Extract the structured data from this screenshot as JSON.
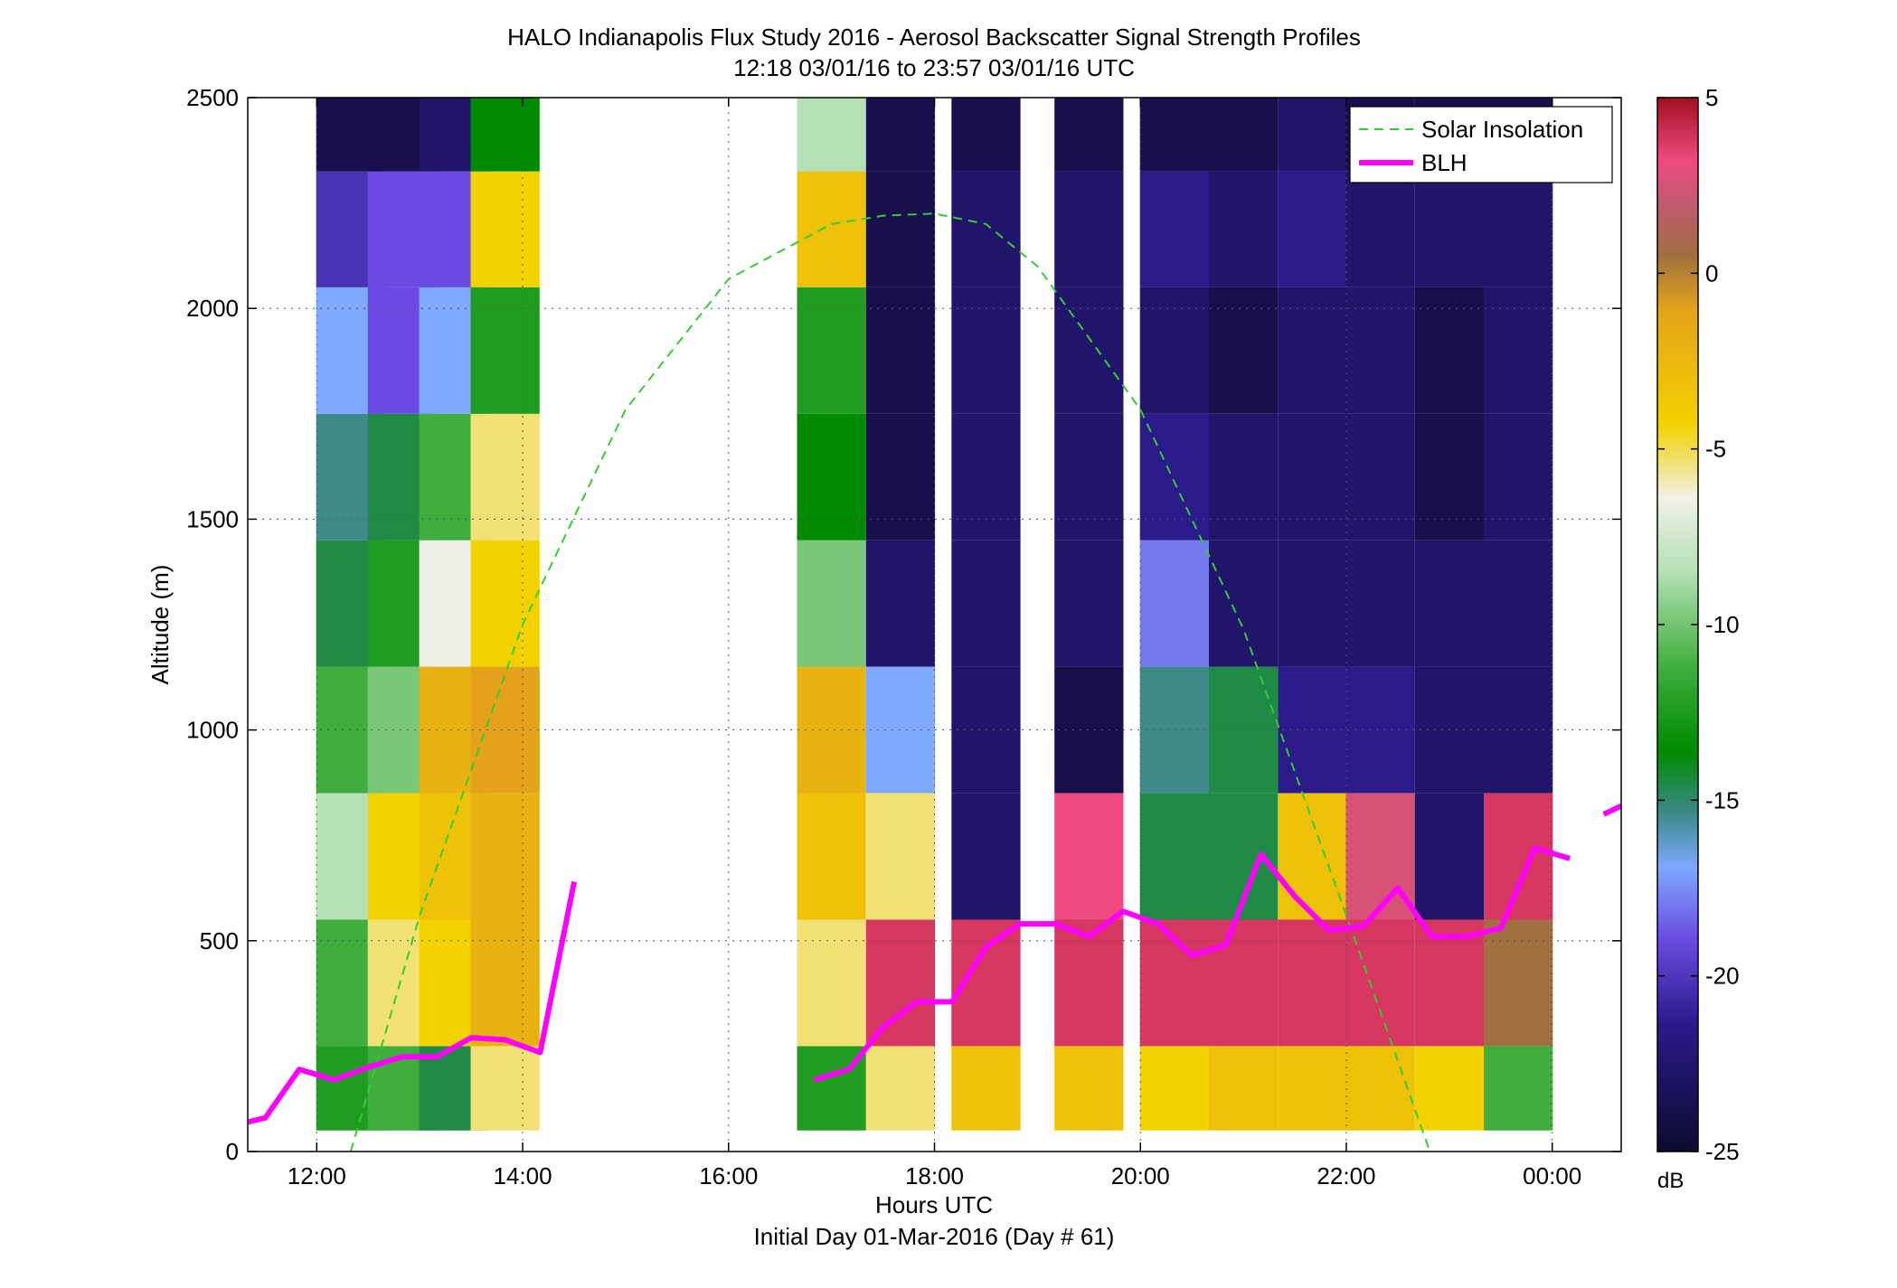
{
  "chart_data": {
    "type": "heatmap",
    "title": "HALO Indianapolis Flux Study 2016 - Aerosol Backscatter Signal Strength Profiles",
    "subtitle": "12:18 03/01/16 to 23:57 03/01/16  UTC",
    "xlabel": "Hours UTC",
    "xlabel_secondary": "Initial Day 01-Mar-2016 (Day # 61)",
    "ylabel": "Altitude (m)",
    "x_unit": "hours UTC (hours after 00:00 on 01-Mar-2016)",
    "xlim": [
      11.33,
      24.67
    ],
    "ylim": [
      0,
      2500
    ],
    "x_ticks": [
      12,
      14,
      16,
      18,
      20,
      22,
      24
    ],
    "x_tick_labels": [
      "12:00",
      "14:00",
      "16:00",
      "18:00",
      "20:00",
      "22:00",
      "00:00"
    ],
    "y_ticks": [
      0,
      500,
      1000,
      1500,
      2000,
      2500
    ],
    "y_tick_labels": [
      "0",
      "500",
      "1000",
      "1500",
      "2000",
      "2500"
    ],
    "grid": true,
    "colorbar": {
      "label": "dB",
      "range": [
        -25,
        5
      ],
      "ticks": [
        5,
        0,
        -5,
        -10,
        -15,
        -20,
        -25
      ],
      "tick_labels": [
        "5",
        "0",
        "-5",
        "-10",
        "-15",
        "-20",
        "-25"
      ]
    },
    "heatmap": {
      "value_unit": "dB",
      "altitude_bin_centers_m": [
        100,
        400,
        700,
        1000,
        1300,
        1600,
        1900,
        2200,
        2450
      ],
      "profiles": [
        {
          "time": 12.33,
          "values": [
            -14,
            -13,
            -11,
            -13,
            -16,
            -17,
            -18,
            -21,
            -24
          ]
        },
        {
          "time": 12.83,
          "values": [
            -13,
            -8,
            -7,
            -12,
            -14,
            -16,
            -20,
            -20,
            -24
          ]
        },
        {
          "time": 13.33,
          "values": [
            -16,
            -7,
            -6,
            -5,
            -9,
            -13,
            -18,
            -20,
            -23
          ]
        },
        {
          "time": 13.83,
          "values": [
            -8,
            -5,
            -5,
            -4,
            -7,
            -8,
            -14,
            -7,
            -15
          ]
        },
        {
          "time": 17.0,
          "values": [
            -14,
            -8,
            -6,
            -5,
            -12,
            -15,
            -14,
            -6,
            -11
          ]
        },
        {
          "time": 17.67,
          "values": [
            -8,
            3,
            -8,
            -18,
            -23,
            -24,
            -24,
            -24,
            -24
          ]
        },
        {
          "time": 18.5,
          "values": [
            -6,
            3,
            -23,
            -23,
            -23,
            -23,
            -23,
            -23,
            -24
          ]
        },
        {
          "time": 19.5,
          "values": [
            -6,
            3,
            2,
            -24,
            -23,
            -23,
            -23,
            -23,
            -24
          ]
        },
        {
          "time": 20.33,
          "values": [
            -7,
            3,
            -16,
            -17,
            -19,
            -22,
            -23,
            -22,
            -24
          ]
        },
        {
          "time": 21.0,
          "values": [
            -6,
            3,
            -16,
            -16,
            -23,
            -23,
            -24,
            -23,
            -24
          ]
        },
        {
          "time": 21.67,
          "values": [
            -6,
            3,
            -6,
            -22,
            -23,
            -23,
            -23,
            -22,
            -23
          ]
        },
        {
          "time": 22.33,
          "values": [
            -6,
            3,
            1,
            -22,
            -23,
            -23,
            -23,
            -23,
            -24
          ]
        },
        {
          "time": 23.0,
          "values": [
            -7,
            3,
            -23,
            -23,
            -23,
            -24,
            -24,
            -23,
            -24
          ]
        },
        {
          "time": 23.67,
          "values": [
            -13,
            -2,
            3,
            -23,
            -23,
            -23,
            -23,
            -23,
            -24
          ]
        }
      ]
    },
    "series": [
      {
        "name": "Solar Insolation",
        "style": "dashed",
        "color": "#33cc33",
        "x": [
          12.33,
          13.0,
          14.0,
          15.0,
          16.0,
          17.0,
          17.5,
          18.0,
          18.5,
          19.0,
          20.0,
          21.0,
          22.0,
          23.0,
          23.4
        ],
        "y": [
          0,
          560,
          1250,
          1760,
          2070,
          2200,
          2220,
          2225,
          2200,
          2100,
          1760,
          1240,
          560,
          -130,
          -300
        ]
      },
      {
        "name": "BLH",
        "style": "solid",
        "color": "#ff00ff",
        "segments": [
          {
            "x": [
              11.33,
              11.5,
              11.83,
              12.17,
              12.5,
              12.83,
              13.17,
              13.5,
              13.83,
              14.17,
              14.5
            ],
            "y": [
              70,
              80,
              195,
              170,
              200,
              225,
              225,
              270,
              265,
              235,
              640
            ]
          },
          {
            "x": [
              16.83,
              17.17,
              17.5,
              17.83,
              18.17,
              18.5,
              18.83,
              19.17,
              19.5,
              19.83,
              20.17,
              20.5,
              20.83,
              21.17,
              21.5,
              21.83,
              22.17,
              22.5,
              22.83,
              23.17,
              23.5,
              23.83,
              24.17
            ],
            "y": [
              170,
              195,
              295,
              355,
              355,
              485,
              540,
              540,
              510,
              570,
              540,
              465,
              490,
              705,
              605,
              525,
              535,
              625,
              510,
              510,
              530,
              720,
              695
            ]
          },
          {
            "x": [
              24.5,
              24.67
            ],
            "y": [
              800,
              820
            ]
          }
        ]
      }
    ],
    "legend": {
      "placement": "top-right",
      "entries": [
        "Solar Insolation",
        "BLH"
      ]
    }
  }
}
